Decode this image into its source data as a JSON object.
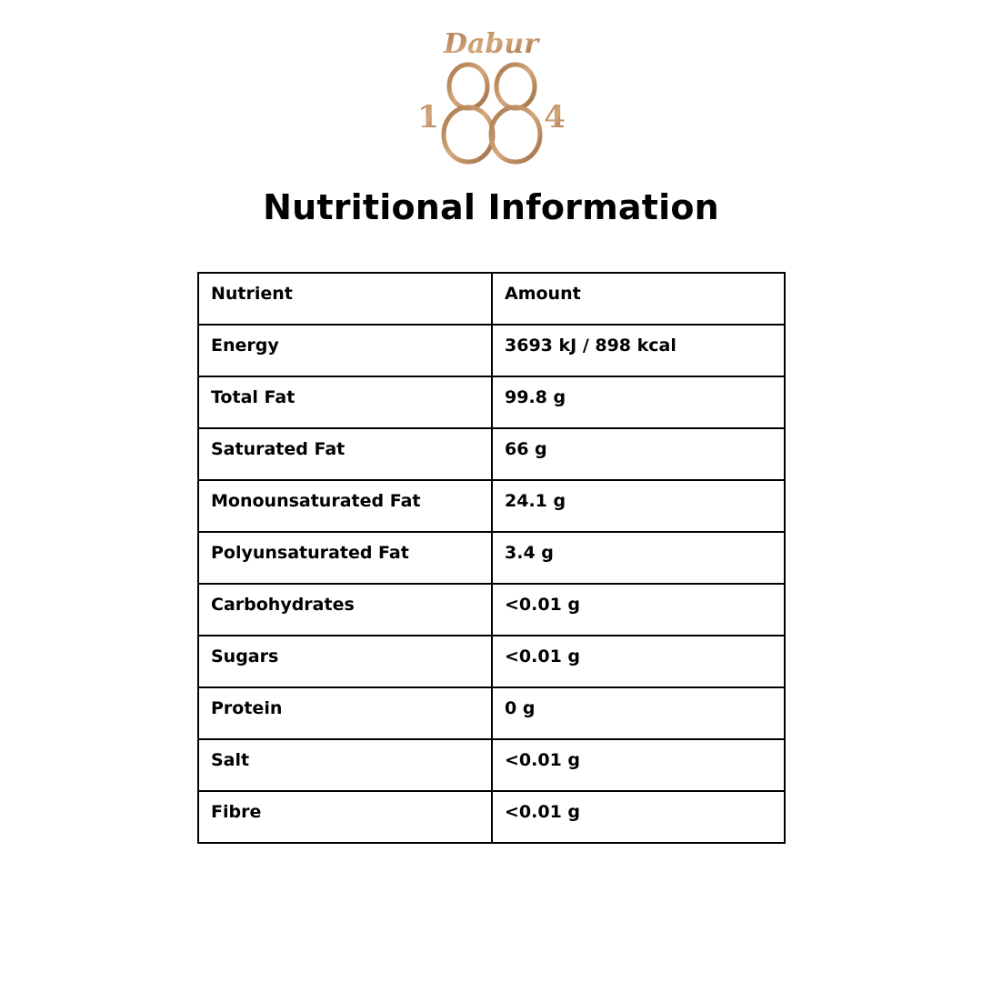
{
  "logo": {
    "brand": "Dabur",
    "year": "1884",
    "color": "#b8875a"
  },
  "title": "Nutritional Information",
  "table": {
    "headers": [
      "Nutrient",
      "Amount"
    ],
    "rows": [
      [
        "Energy",
        "3693 kJ / 898 kcal"
      ],
      [
        "Total Fat",
        "99.8 g"
      ],
      [
        "Saturated Fat",
        "66 g"
      ],
      [
        "Monounsaturated Fat",
        "24.1 g"
      ],
      [
        "Polyunsaturated Fat",
        "3.4 g"
      ],
      [
        "Carbohydrates",
        "<0.01 g"
      ],
      [
        "Sugars",
        "<0.01 g"
      ],
      [
        "Protein",
        "0 g"
      ],
      [
        "Salt",
        "<0.01 g"
      ],
      [
        "Fibre",
        "<0.01 g"
      ]
    ]
  }
}
